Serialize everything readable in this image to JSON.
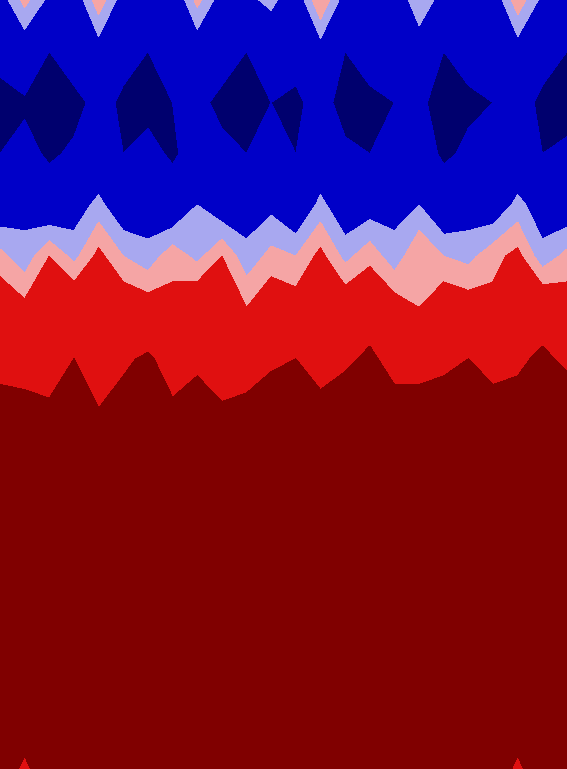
{
  "chart_data": {
    "type": "contour",
    "tick_labels": false,
    "levels": [
      -1.05,
      -0.9,
      -0.3,
      0.0,
      0.3,
      0.85,
      1.05
    ],
    "colors": [
      "#00006e",
      "#0000c8",
      "#a8a8f0",
      "#f5a5a5",
      "#e01010",
      "#800000"
    ],
    "z": [
      [
        -0.5,
        0.1,
        -0.4,
        -0.6,
        0.2,
        -0.5,
        -0.3,
        -0.7,
        0.1,
        -0.5,
        -0.4,
        -0.2,
        -0.6,
        0.3,
        -0.5,
        -0.4,
        -0.7,
        0.0,
        -0.5,
        -0.3,
        -0.6,
        0.2,
        -0.4,
        -0.5
      ],
      [
        -0.8,
        -0.6,
        -0.9,
        -0.7,
        -0.5,
        -0.8,
        -0.9,
        -0.7,
        -0.6,
        -0.8,
        -0.9,
        -0.7,
        -0.8,
        -0.5,
        -0.9,
        -0.8,
        -0.7,
        -0.6,
        -0.9,
        -0.8,
        -0.7,
        -0.5,
        -0.8,
        -0.9
      ],
      [
        -1.0,
        -0.95,
        -0.9,
        -1.0,
        -0.8,
        -0.95,
        -1.0,
        -0.9,
        -0.85,
        -0.95,
        -1.0,
        -0.9,
        -0.95,
        -0.8,
        -1.0,
        -0.95,
        -0.9,
        -0.85,
        -1.0,
        -0.95,
        -0.9,
        -0.8,
        -0.95,
        -1.0
      ],
      [
        -0.9,
        -0.8,
        -0.95,
        -0.85,
        -0.7,
        -0.9,
        -0.8,
        -0.95,
        -0.75,
        -0.85,
        -0.9,
        -0.8,
        -0.9,
        -0.7,
        -0.85,
        -0.9,
        -0.8,
        -0.75,
        -0.95,
        -0.85,
        -0.8,
        -0.7,
        -0.9,
        -0.85
      ],
      [
        -0.6,
        -0.4,
        -0.7,
        -0.5,
        -0.2,
        -0.6,
        -0.5,
        -0.7,
        -0.3,
        -0.6,
        -0.5,
        -0.4,
        -0.7,
        -0.2,
        -0.6,
        -0.5,
        -0.4,
        -0.3,
        -0.7,
        -0.5,
        -0.6,
        -0.2,
        -0.5,
        -0.6
      ],
      [
        0.1,
        -0.2,
        0.3,
        -0.1,
        0.4,
        0.0,
        -0.2,
        0.2,
        -0.1,
        0.3,
        -0.2,
        0.1,
        0.0,
        0.4,
        -0.1,
        0.2,
        -0.2,
        0.3,
        0.0,
        -0.1,
        0.2,
        0.4,
        -0.2,
        0.1
      ],
      [
        0.6,
        0.4,
        0.5,
        0.7,
        0.3,
        0.6,
        0.5,
        0.4,
        0.7,
        0.5,
        0.3,
        0.6,
        0.5,
        0.4,
        0.6,
        0.7,
        0.5,
        0.3,
        0.6,
        0.5,
        0.4,
        0.6,
        0.7,
        0.5
      ],
      [
        0.8,
        0.7,
        0.75,
        0.85,
        0.6,
        0.8,
        0.9,
        0.7,
        0.8,
        0.75,
        0.65,
        0.8,
        0.85,
        0.7,
        0.8,
        0.9,
        0.75,
        0.7,
        0.8,
        0.85,
        0.7,
        0.8,
        0.9,
        0.8
      ],
      [
        0.9,
        0.95,
        0.88,
        1.0,
        0.86,
        0.95,
        1.0,
        0.9,
        0.95,
        0.87,
        0.95,
        1.0,
        0.9,
        0.95,
        1.0,
        0.9,
        0.95,
        1.0,
        0.95,
        0.9,
        1.0,
        0.95,
        0.9,
        1.0
      ],
      [
        1.0,
        1.0,
        1.0,
        1.0,
        1.0,
        1.0,
        1.0,
        1.0,
        1.0,
        1.0,
        1.0,
        1.0,
        1.0,
        1.0,
        1.0,
        1.0,
        1.0,
        1.0,
        1.0,
        1.0,
        1.0,
        1.0,
        1.0,
        1.0
      ],
      [
        1.0,
        1.0,
        1.0,
        1.0,
        1.0,
        1.0,
        1.0,
        1.0,
        1.0,
        1.0,
        1.0,
        1.0,
        1.0,
        1.0,
        1.0,
        1.0,
        1.0,
        1.0,
        1.0,
        1.0,
        1.0,
        1.0,
        1.0,
        1.0
      ],
      [
        1.0,
        1.0,
        1.0,
        1.0,
        1.0,
        1.0,
        1.0,
        1.0,
        1.0,
        1.0,
        1.0,
        1.0,
        1.0,
        1.0,
        1.0,
        1.0,
        1.0,
        1.0,
        1.0,
        1.0,
        1.0,
        1.0,
        1.0,
        1.0
      ],
      [
        1.0,
        1.0,
        1.0,
        1.0,
        1.0,
        1.0,
        1.0,
        1.0,
        1.0,
        1.0,
        1.0,
        1.0,
        1.0,
        1.0,
        1.0,
        1.0,
        1.0,
        1.0,
        1.0,
        1.0,
        1.0,
        1.0,
        1.0,
        1.0
      ],
      [
        1.0,
        1.0,
        1.0,
        1.0,
        1.0,
        1.0,
        1.0,
        1.0,
        1.0,
        1.0,
        1.0,
        1.0,
        1.0,
        1.0,
        1.0,
        1.0,
        1.0,
        1.0,
        1.0,
        1.0,
        1.0,
        1.0,
        1.0,
        1.0
      ],
      [
        1.0,
        1.0,
        1.0,
        1.0,
        1.0,
        1.0,
        1.0,
        1.0,
        1.0,
        1.0,
        1.0,
        1.0,
        1.0,
        1.0,
        1.0,
        1.0,
        1.0,
        1.0,
        1.0,
        1.0,
        1.0,
        1.0,
        1.0,
        1.0
      ],
      [
        1.0,
        0.8,
        1.0,
        1.0,
        1.0,
        1.0,
        1.0,
        1.0,
        1.0,
        1.0,
        1.0,
        1.0,
        1.0,
        1.0,
        1.0,
        1.0,
        1.0,
        1.0,
        1.0,
        1.0,
        1.0,
        0.8,
        1.0,
        1.0
      ]
    ]
  }
}
